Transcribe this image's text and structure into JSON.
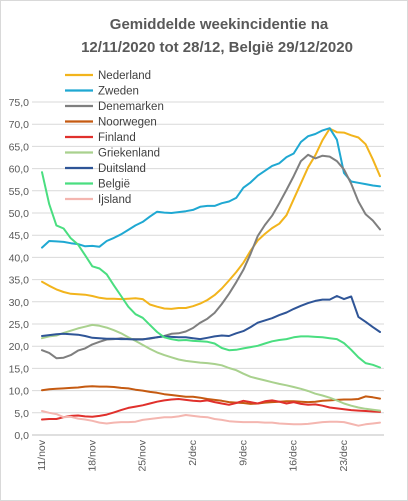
{
  "chart_data": {
    "type": "line",
    "title_lines": [
      "Gemiddelde weekincidentie  na",
      "12/11/2020 tot 28/12, België 29/12/2020"
    ],
    "xlabel": "",
    "ylabel": "",
    "ylim": [
      0,
      75
    ],
    "y_ticks": [
      "0,0",
      "5,0",
      "10,0",
      "15,0",
      "20,0",
      "25,0",
      "30,0",
      "35,0",
      "40,0",
      "45,0",
      "50,0",
      "55,0",
      "60,0",
      "65,0",
      "70,0",
      "75,0"
    ],
    "x_dates": [
      "11/nov",
      "12/nov",
      "13/nov",
      "14/nov",
      "15/nov",
      "16/nov",
      "17/nov",
      "18/nov",
      "19/nov",
      "20/nov",
      "21/nov",
      "22/nov",
      "23/nov",
      "24/nov",
      "25/nov",
      "26/nov",
      "27/nov",
      "28/nov",
      "29/nov",
      "30/nov",
      "1/dec",
      "2/dec",
      "3/dec",
      "4/dec",
      "5/dec",
      "6/dec",
      "7/dec",
      "8/dec",
      "9/dec",
      "10/dec",
      "11/dec",
      "12/dec",
      "13/dec",
      "14/dec",
      "15/dec",
      "16/dec",
      "17/dec",
      "18/dec",
      "19/dec",
      "20/dec",
      "21/dec",
      "22/dec",
      "23/dec",
      "24/dec",
      "25/dec",
      "26/dec",
      "27/dec",
      "28/dec"
    ],
    "x_tick_labels": [
      {
        "index": 0,
        "label": "11/nov"
      },
      {
        "index": 7,
        "label": "18/nov"
      },
      {
        "index": 14,
        "label": "25/nov"
      },
      {
        "index": 21,
        "label": "2/dec"
      },
      {
        "index": 28,
        "label": "9/dec"
      },
      {
        "index": 35,
        "label": "16/dec"
      },
      {
        "index": 42,
        "label": "23/dec"
      }
    ],
    "grid": "horizontal",
    "legend_position": "top-center",
    "series": [
      {
        "name": "Nederland",
        "color": "#F2B41C",
        "values": [
          34.5,
          33.6,
          32.8,
          32.2,
          31.8,
          31.7,
          31.6,
          31.3,
          30.9,
          30.7,
          30.7,
          30.6,
          30.7,
          30.8,
          30.6,
          29.4,
          28.9,
          28.5,
          28.4,
          28.6,
          28.6,
          29.0,
          29.6,
          30.4,
          31.5,
          33.0,
          34.8,
          36.7,
          38.8,
          41.5,
          43.8,
          45.3,
          46.6,
          47.6,
          49.5,
          53.1,
          56.7,
          60.3,
          63.0,
          66.4,
          69.0,
          68.2,
          68.1,
          67.5,
          67.0,
          65.5,
          62.1,
          58.3
        ]
      },
      {
        "name": "Zweden",
        "color": "#1FA8D2",
        "values": [
          42.2,
          43.7,
          43.6,
          43.5,
          43.2,
          43.0,
          42.5,
          42.6,
          42.4,
          43.7,
          44.4,
          45.2,
          46.2,
          47.2,
          48.0,
          49.2,
          50.3,
          50.1,
          50.0,
          50.2,
          50.4,
          50.7,
          51.4,
          51.6,
          51.6,
          52.2,
          52.6,
          53.4,
          55.7,
          56.9,
          58.4,
          59.5,
          60.6,
          61.2,
          62.6,
          63.4,
          66.0,
          67.3,
          67.8,
          68.6,
          69.1,
          66.5,
          59.0,
          57.1,
          56.8,
          56.5,
          56.2,
          56.0
        ]
      },
      {
        "name": "Denemarken",
        "color": "#7F7F7F",
        "values": [
          19.1,
          18.5,
          17.3,
          17.4,
          18.0,
          19.0,
          19.5,
          20.4,
          21.0,
          21.5,
          21.6,
          21.8,
          21.6,
          21.6,
          21.6,
          21.7,
          22.0,
          22.3,
          22.8,
          22.9,
          23.3,
          24.1,
          25.3,
          26.2,
          27.5,
          29.5,
          31.8,
          34.4,
          37.2,
          40.8,
          44.8,
          47.3,
          49.4,
          52.2,
          55.2,
          58.3,
          61.7,
          63.1,
          62.3,
          62.9,
          62.7,
          61.7,
          59.8,
          56.6,
          52.6,
          49.7,
          48.3,
          46.3
        ]
      },
      {
        "name": "Noorwegen",
        "color": "#C55A11",
        "values": [
          10.1,
          10.3,
          10.4,
          10.5,
          10.6,
          10.7,
          10.9,
          11.0,
          10.9,
          10.9,
          10.8,
          10.6,
          10.5,
          10.2,
          10.0,
          9.7,
          9.5,
          9.2,
          9.0,
          8.8,
          8.6,
          8.6,
          8.4,
          8.1,
          7.9,
          7.7,
          7.4,
          7.3,
          7.2,
          7.0,
          7.1,
          7.3,
          7.4,
          7.5,
          7.6,
          7.6,
          7.5,
          7.4,
          7.5,
          7.7,
          7.8,
          7.9,
          8.0,
          8.0,
          8.1,
          8.7,
          8.5,
          8.2
        ]
      },
      {
        "name": "Finland",
        "color": "#E0302C",
        "values": [
          3.5,
          3.6,
          3.6,
          4.0,
          4.3,
          4.4,
          4.2,
          4.1,
          4.3,
          4.6,
          5.1,
          5.6,
          6.1,
          6.4,
          6.7,
          7.1,
          7.5,
          7.8,
          8.0,
          8.1,
          7.9,
          7.7,
          7.6,
          7.8,
          7.4,
          7.1,
          6.8,
          7.2,
          7.7,
          7.4,
          7.1,
          7.6,
          7.8,
          7.5,
          7.1,
          7.4,
          7.0,
          6.8,
          6.9,
          6.6,
          6.2,
          6.0,
          5.8,
          5.6,
          5.5,
          5.4,
          5.3,
          5.2
        ]
      },
      {
        "name": "Griekenland",
        "color": "#A9D18E",
        "values": [
          21.8,
          22.2,
          22.4,
          23.0,
          23.5,
          24.0,
          24.4,
          24.8,
          24.6,
          24.2,
          23.6,
          22.9,
          22.0,
          21.2,
          20.3,
          19.4,
          18.6,
          18.0,
          17.5,
          17.0,
          16.7,
          16.5,
          16.3,
          16.2,
          16.0,
          15.7,
          15.1,
          14.6,
          13.8,
          13.1,
          12.7,
          12.3,
          11.9,
          11.5,
          11.2,
          10.8,
          10.4,
          9.9,
          9.3,
          8.9,
          8.4,
          7.8,
          7.1,
          6.6,
          6.2,
          5.9,
          5.7,
          5.5
        ]
      },
      {
        "name": "Duitsland",
        "color": "#2F5597",
        "values": [
          22.3,
          22.5,
          22.7,
          22.8,
          22.7,
          22.6,
          22.3,
          21.9,
          21.8,
          21.7,
          21.7,
          21.6,
          21.6,
          21.5,
          21.5,
          21.8,
          22.0,
          22.2,
          22.1,
          22.0,
          22.0,
          21.8,
          21.6,
          21.9,
          22.2,
          22.4,
          22.3,
          22.9,
          23.4,
          24.3,
          25.3,
          25.8,
          26.3,
          27.0,
          27.6,
          28.4,
          29.1,
          29.7,
          30.2,
          30.5,
          30.5,
          31.3,
          30.6,
          31.2,
          26.6,
          25.5,
          24.3,
          23.2
        ]
      },
      {
        "name": "België",
        "color": "#4ADE80",
        "values": [
          59.2,
          52.0,
          47.2,
          46.5,
          44.3,
          42.9,
          40.5,
          38.0,
          37.5,
          36.2,
          33.7,
          31.3,
          28.9,
          27.2,
          26.4,
          24.8,
          23.2,
          22.0,
          21.6,
          21.3,
          21.4,
          21.2,
          21.1,
          21.0,
          20.6,
          19.6,
          19.1,
          19.2,
          19.5,
          19.8,
          20.1,
          20.6,
          21.1,
          21.4,
          21.6,
          22.0,
          22.2,
          22.2,
          22.1,
          22.0,
          21.8,
          21.6,
          20.7,
          19.2,
          17.5,
          16.2,
          15.8,
          15.2
        ]
      },
      {
        "name": "Ijsland",
        "color": "#F4B6B0",
        "values": [
          5.4,
          5.0,
          4.7,
          4.0,
          4.1,
          3.7,
          3.5,
          3.2,
          2.8,
          2.6,
          2.8,
          2.9,
          2.9,
          3.0,
          3.4,
          3.6,
          3.8,
          4.0,
          4.0,
          4.2,
          4.5,
          4.3,
          4.1,
          4.0,
          3.6,
          3.4,
          3.1,
          3.0,
          2.9,
          2.9,
          2.9,
          2.8,
          2.8,
          2.6,
          2.5,
          2.4,
          2.4,
          2.5,
          2.7,
          2.9,
          3.0,
          3.0,
          2.9,
          2.5,
          2.1,
          2.4,
          2.6,
          2.8
        ]
      }
    ]
  }
}
